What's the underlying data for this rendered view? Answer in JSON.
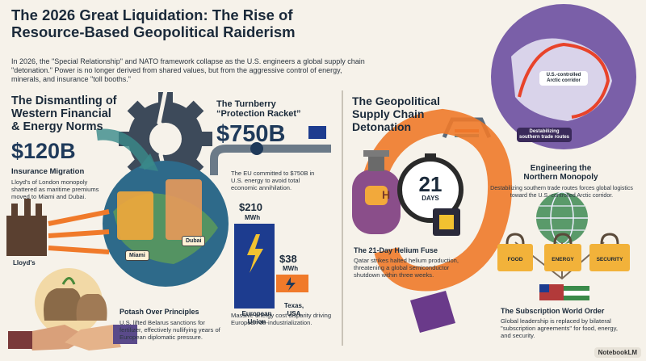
{
  "header": {
    "title_line1": "The 2026 Great Liquidation: The Rise of",
    "title_line2": "Resource-Based Geopolitical Raiderism",
    "intro": "In 2026, the \"Special Relationship\" and NATO framework collapse as the U.S. engineers a global supply chain \"detonation.\" Power is no longer derived from shared values, but from the aggressive control of energy, minerals, and insurance \"toll booths.\""
  },
  "left": {
    "heading_line1": "The Dismantling of",
    "heading_line2": "Western Financial",
    "heading_line3": "& Energy Norms",
    "insurance": {
      "value": "$120B",
      "title": "Insurance Migration",
      "body": "Lloyd's of London monopoly shattered as maritime premiums moved to Miami and Dubai."
    },
    "lloyds_label": "Lloyd's",
    "miami_label": "Miami",
    "dubai_label": "Dubai",
    "turnberry": {
      "title_line1": "The Turnberry",
      "title_line2": "“Protection Racket”",
      "value": "$750B",
      "body": "The EU committed to $750B in U.S. energy to avoid total economic annihilation."
    },
    "energy": {
      "eu_price": "$210",
      "eu_unit": "MWh",
      "us_price": "$38",
      "us_unit": "MWh",
      "eu_label": "European Union",
      "us_label": "Texas, USA",
      "caption": "Massive energy cost disparity driving European de-industrialization."
    },
    "potash": {
      "title": "Potash Over Principles",
      "body": "U.S. lifted Belarus sanctions for fertilizer, effectively nullifying years of European diplomatic pressure."
    }
  },
  "right": {
    "heading_line1": "The Geopolitical",
    "heading_line2": "Supply Chain",
    "heading_line3": "Detonation",
    "arctic_label": "U.S.-controlled Arctic corridor",
    "southern_label": "Destabilizing southern trade routes",
    "northern": {
      "title_line1": "Engineering the",
      "title_line2": "Northern Monopoly",
      "body": "Destabilizing southern trade routes forces global logistics toward the U.S.-controlled Arctic corridor."
    },
    "timer_value": "21",
    "timer_unit": "DAYS",
    "helium_tank_letter": "H",
    "helium": {
      "title": "The 21-Day Helium Fuse",
      "body": "Qatar strikes halted helium production, threatening a global semiconductor shutdown within three weeks."
    },
    "locks": [
      "FOOD",
      "ENERGY",
      "SECURITY"
    ],
    "subscription": {
      "title": "The Subscription World Order",
      "body": "Global leadership is replaced by bilateral \"subscription agreements\" for food, energy, and security."
    }
  },
  "footer": {
    "brand": "NotebookLM"
  },
  "colors": {
    "navy": "#1f3a5a",
    "orange": "#f07a2a",
    "purple": "#7a4e9a",
    "eu_blue": "#1d3c8f"
  }
}
